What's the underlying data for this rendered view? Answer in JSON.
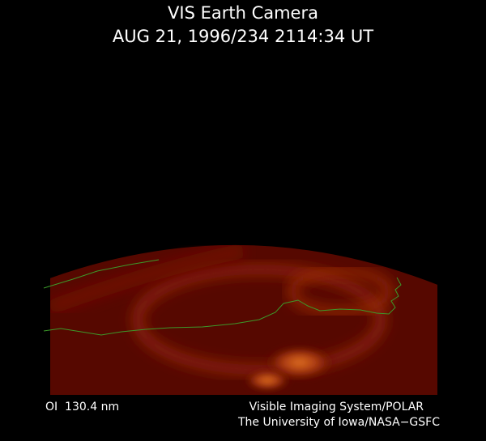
{
  "header": {
    "title": "VIS Earth Camera",
    "subtitle": "AUG 21, 1996/234 2114:34 UT"
  },
  "footer": {
    "wavelength": "OI  130.4 nm",
    "instrument": "Visible Imaging System/POLAR",
    "institution": "The University of Iowa/NASA−GSFC"
  }
}
